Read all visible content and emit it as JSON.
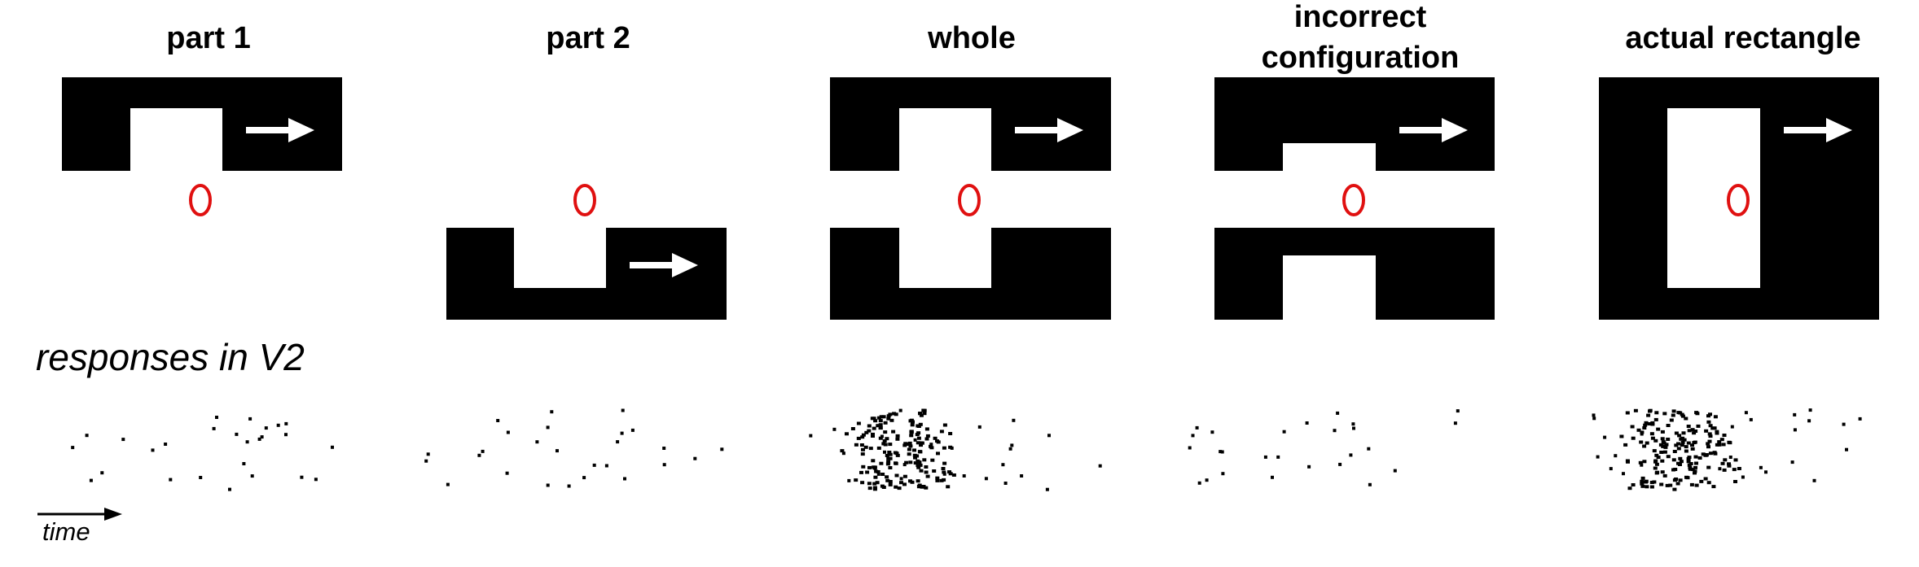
{
  "panels": [
    {
      "title": "part 1"
    },
    {
      "title": "part 2"
    },
    {
      "title": "whole"
    },
    {
      "title": "incorrect configuration"
    },
    {
      "title": "actual rectangle"
    }
  ],
  "row_label": "responses in V2",
  "time_label": "time",
  "colors": {
    "shape": "#000000",
    "fixation": "#e01010",
    "arrow": "#ffffff",
    "spike": "#000000"
  },
  "spike_activity": [
    {
      "panel": "part 1",
      "density": "sparse"
    },
    {
      "panel": "part 2",
      "density": "sparse"
    },
    {
      "panel": "whole",
      "density": "dense-early"
    },
    {
      "panel": "incorrect configuration",
      "density": "sparse"
    },
    {
      "panel": "actual rectangle",
      "density": "dense-early"
    }
  ]
}
